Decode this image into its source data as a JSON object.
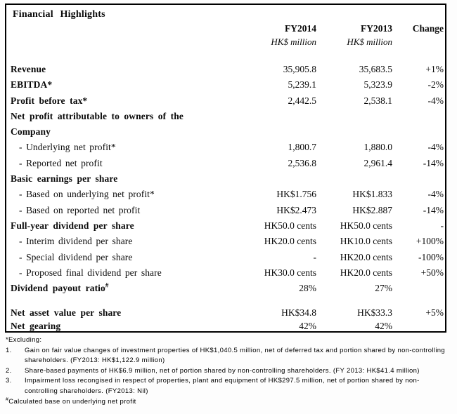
{
  "table": {
    "title": "Financial Highlights",
    "col_headers": [
      "FY2014",
      "FY2013",
      "Change"
    ],
    "unit_label": "HK$ million",
    "rows": [
      {
        "label": "Revenue",
        "style": "bold",
        "v1": "35,905.8",
        "v2": "35,683.5",
        "v3": "+1%"
      },
      {
        "label": "EBITDA*",
        "style": "bold",
        "v1": "5,239.1",
        "v2": "5,323.9",
        "v3": "-2%"
      },
      {
        "label": "Profit before tax*",
        "style": "bold",
        "v1": "2,442.5",
        "v2": "2,538.1",
        "v3": "-4%"
      },
      {
        "label": "Net profit attributable to owners of the",
        "style": "bold",
        "v1": "",
        "v2": "",
        "v3": ""
      },
      {
        "label": "Company",
        "style": "bold",
        "v1": "",
        "v2": "",
        "v3": ""
      },
      {
        "label": "- Underlying net profit*",
        "style": "sub",
        "v1": "1,800.7",
        "v2": "1,880.0",
        "v3": "-4%"
      },
      {
        "label": "- Reported net profit",
        "style": "sub",
        "v1": "2,536.8",
        "v2": "2,961.4",
        "v3": "-14%"
      },
      {
        "label": "Basic earnings per share",
        "style": "bold",
        "v1": "",
        "v2": "",
        "v3": ""
      },
      {
        "label": "- Based on underlying net profit*",
        "style": "sub",
        "v1": "HK$1.756",
        "v2": "HK$1.833",
        "v3": "-4%"
      },
      {
        "label": "- Based on reported net profit",
        "style": "sub",
        "v1": "HK$2.473",
        "v2": "HK$2.887",
        "v3": "-14%"
      },
      {
        "label": "Full-year dividend per share",
        "style": "bold",
        "v1": "HK50.0 cents",
        "v2": "HK50.0 cents",
        "v3": "-"
      },
      {
        "label": "- Interim dividend per share",
        "style": "sub",
        "v1": "HK20.0 cents",
        "v2": "HK10.0 cents",
        "v3": "+100%"
      },
      {
        "label": "- Special dividend per share",
        "style": "sub",
        "v1": "-",
        "v2": "HK20.0 cents",
        "v3": "-100%"
      },
      {
        "label": "- Proposed final dividend per share",
        "style": "sub",
        "v1": "HK30.0 cents",
        "v2": "HK20.0 cents",
        "v3": "+50%"
      },
      {
        "label": "Dividend payout ratio",
        "label_sup": "#",
        "style": "bold",
        "v1": "28%",
        "v2": "27%",
        "v3": ""
      },
      {
        "type": "spacer"
      },
      {
        "label": "Net asset value per share",
        "style": "bold",
        "v1": "HK$34.8",
        "v2": "HK$33.3",
        "v3": "+5%"
      },
      {
        "label": "Net gearing",
        "style": "bold",
        "v1": "42%",
        "v2": "42%",
        "v3": ""
      }
    ]
  },
  "footnotes": {
    "excluding_label": "*Excluding:",
    "items": [
      {
        "num": "1.",
        "text": "Gain on fair value changes of investment properties of HK$1,040.5 million, net of deferred tax and portion shared by non-controlling shareholders. (FY2013: HK$1,122.9 million)"
      },
      {
        "num": "2.",
        "text": "Share-based payments of HK$6.9 million, net of portion shared by non-controlling shareholders. (FY 2013: HK$41.4 million)"
      },
      {
        "num": "3.",
        "text": "Impairment loss recongised in respect of properties, plant and equipment of HK$297.5 million, net of portion shared by non-controlling shareholders. (FY2013: Nil)"
      }
    ],
    "calc_note_sup": "#",
    "calc_note": "Calculated base on underlying net profit"
  }
}
